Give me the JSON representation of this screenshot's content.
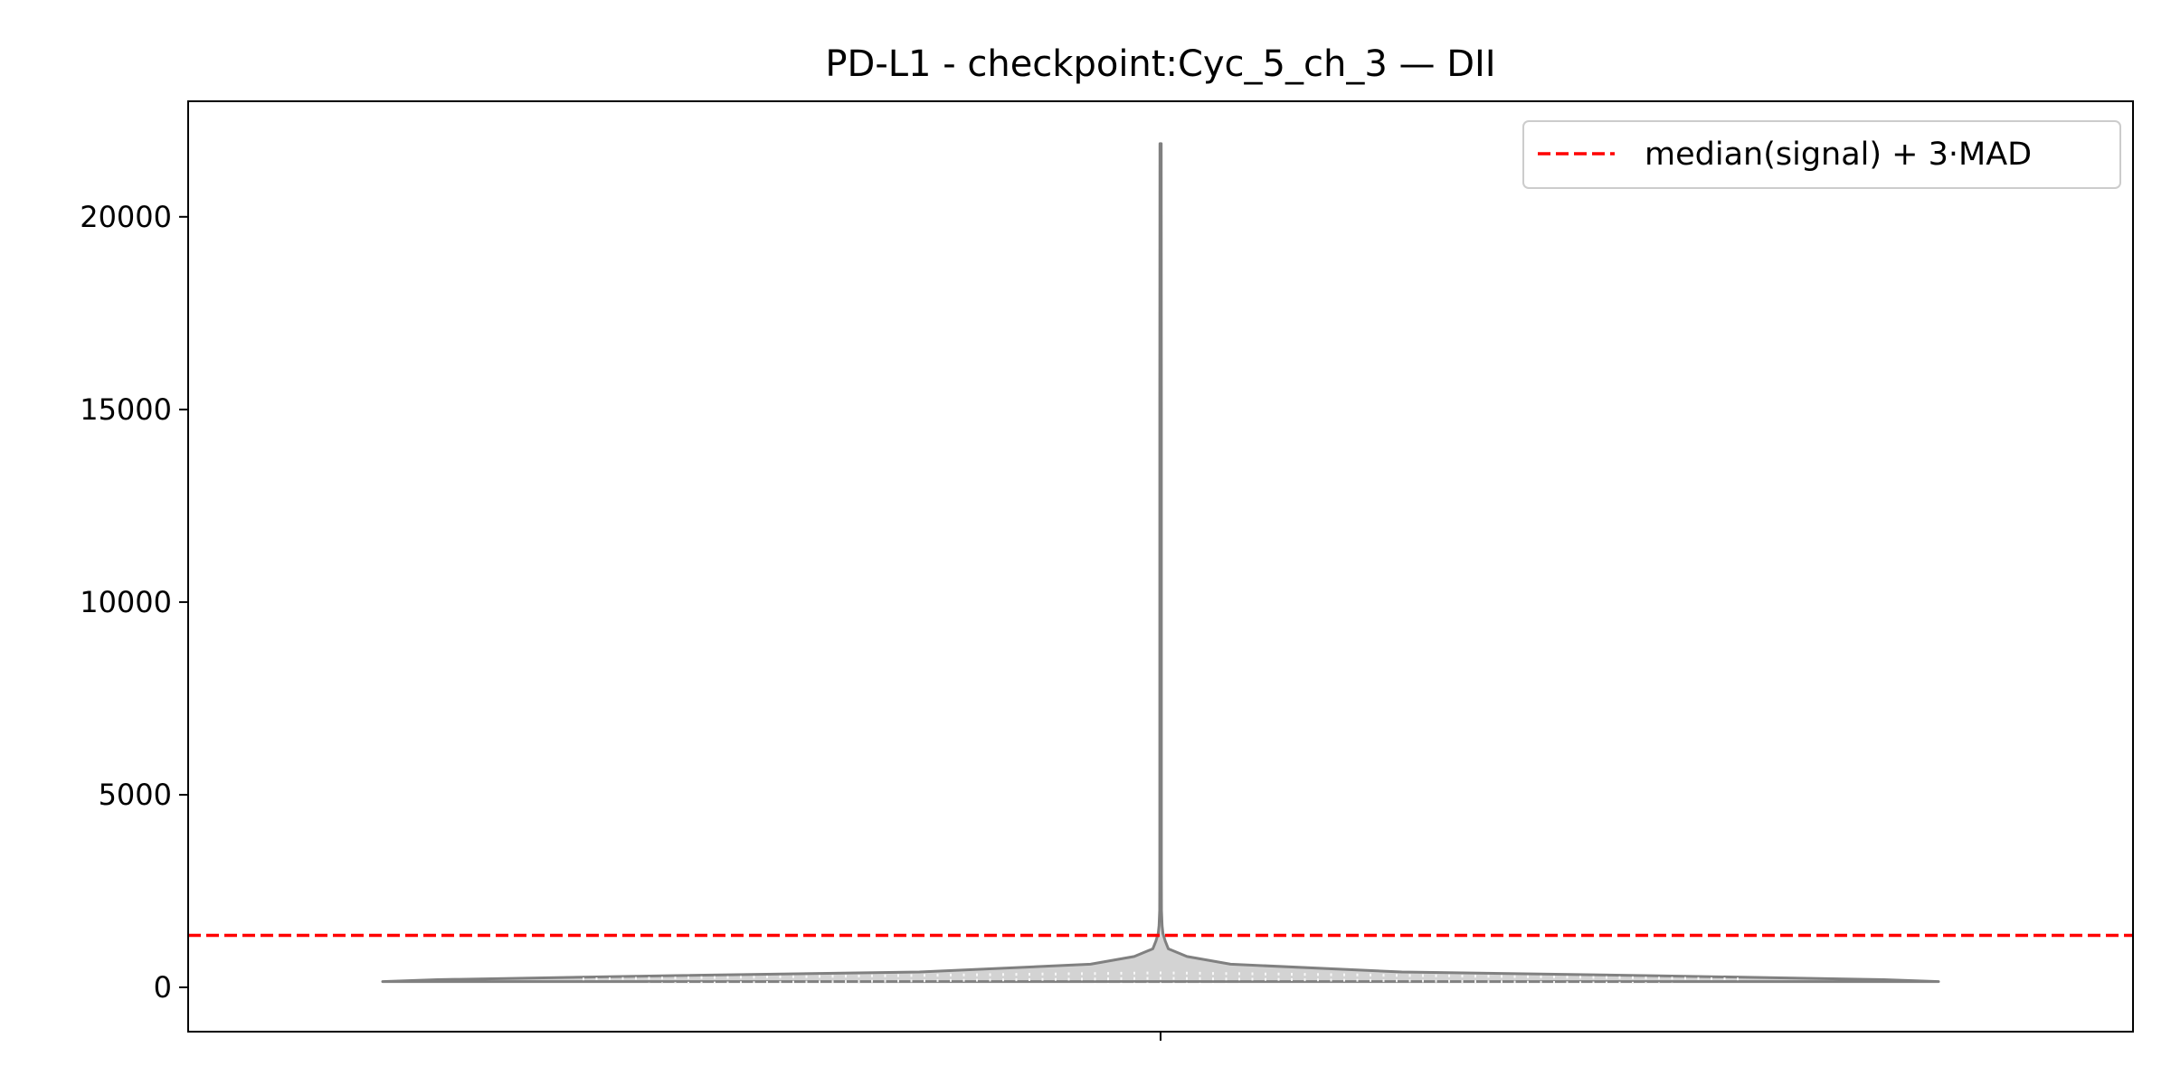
{
  "chart_data": {
    "type": "violin",
    "title": "PD-L1 - checkpoint:Cyc_5_ch_3 — DII",
    "xlabel": "",
    "ylabel": "",
    "categories": [
      ""
    ],
    "ylim": [
      -1150,
      23000
    ],
    "yticks": [
      0,
      5000,
      10000,
      15000,
      20000
    ],
    "ytick_labels": [
      "0",
      "5000",
      "10000",
      "15000",
      "20000"
    ],
    "grid": false,
    "legend": {
      "placement": "top-right",
      "entries": [
        {
          "label": "median(signal) + 3·MAD",
          "style": "dashed",
          "color": "#ff0000"
        }
      ]
    },
    "threshold_line": {
      "label": "median(signal) + 3·MAD",
      "y": 1350,
      "color": "#ff0000"
    },
    "violin": {
      "fill": "#d3d3d3",
      "edge": "#808080",
      "y_min": 150,
      "y_max": 21900,
      "density_profile": [
        [
          150,
          1.0
        ],
        [
          200,
          0.93
        ],
        [
          300,
          0.64
        ],
        [
          400,
          0.31
        ],
        [
          600,
          0.09
        ],
        [
          800,
          0.034
        ],
        [
          1000,
          0.01
        ],
        [
          1200,
          0.006
        ],
        [
          1400,
          0.003
        ],
        [
          1600,
          0.002
        ],
        [
          2000,
          0.0012
        ],
        [
          3000,
          0.001
        ],
        [
          6000,
          0.001
        ],
        [
          10000,
          0.001
        ],
        [
          15000,
          0.001
        ],
        [
          21900,
          0.0008
        ]
      ]
    }
  }
}
